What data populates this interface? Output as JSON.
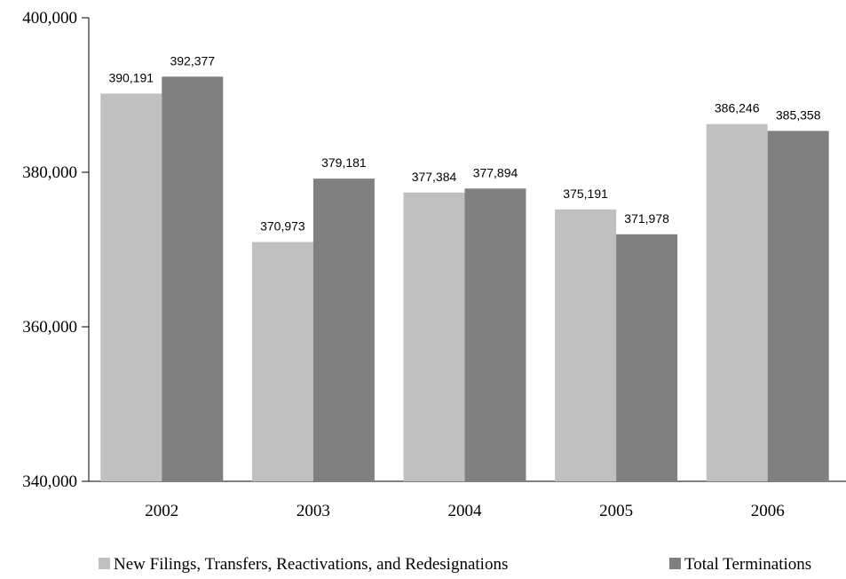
{
  "chart_data": {
    "type": "bar",
    "title": "",
    "xlabel": "",
    "ylabel": "",
    "categories": [
      "2002",
      "2003",
      "2004",
      "2005",
      "2006"
    ],
    "series": [
      {
        "name": "New Filings, Transfers, Reactivations, and Redesignations",
        "color": "#c0c0c0",
        "values": [
          390191,
          370973,
          377384,
          375191,
          386246
        ],
        "labels": [
          "390,191",
          "370,973",
          "377,384",
          "375,191",
          "386,246"
        ]
      },
      {
        "name": "Total Terminations",
        "color": "#808080",
        "values": [
          392377,
          379181,
          377894,
          371978,
          385358
        ],
        "labels": [
          "392,377",
          "379,181",
          "377,894",
          "371,978",
          "385,358"
        ]
      }
    ],
    "ylim": [
      340000,
      400000
    ],
    "yticks": [
      340000,
      360000,
      380000,
      400000
    ],
    "ytick_labels": [
      "340,000",
      "360,000",
      "380,000",
      "400,000"
    ],
    "grid": false,
    "legend_position": "bottom"
  }
}
